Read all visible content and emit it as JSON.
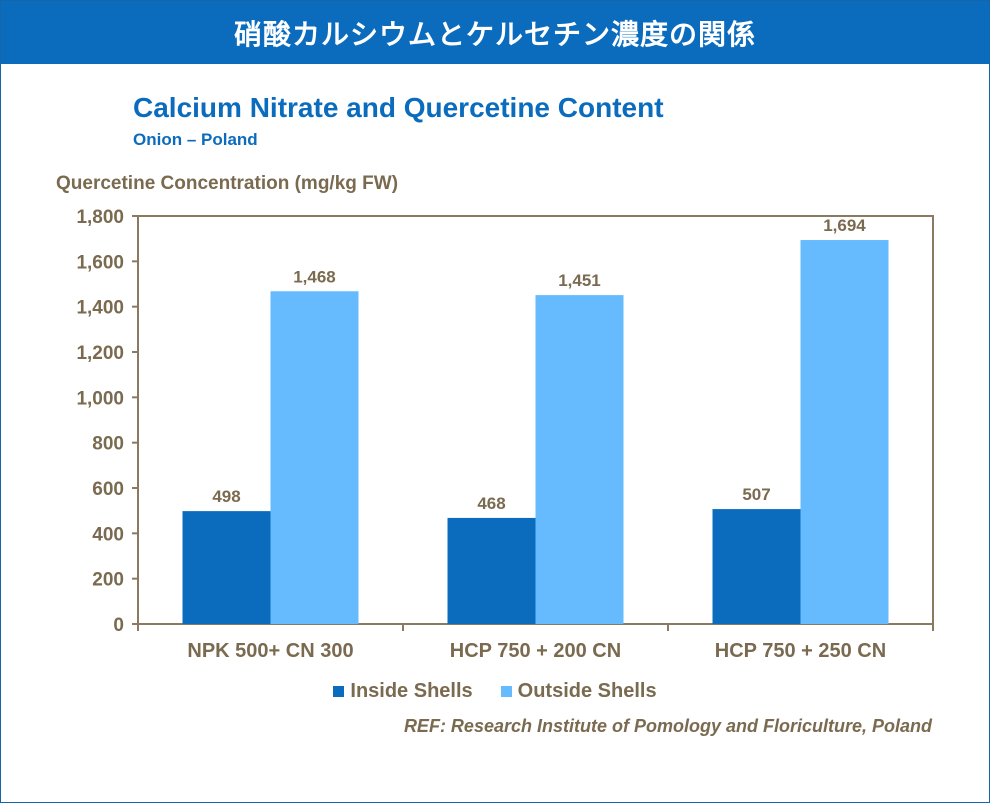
{
  "banner": {
    "title": "硝酸カルシウムとケルセチン濃度の関係"
  },
  "colors": {
    "inside": "#0b6cbe",
    "outside": "#66bbff",
    "axis": "#8a7a62",
    "text": "#7a6a4f"
  },
  "chart_data": {
    "type": "bar",
    "title": "Calcium Nitrate and Quercetine Content",
    "subtitle": "Onion – Poland",
    "ylabel": "Quercetine Concentration (mg/kg FW)",
    "xlabel": "",
    "categories": [
      "NPK 500+ CN 300",
      "HCP 750 + 200 CN",
      "HCP 750 + 250 CN"
    ],
    "series": [
      {
        "name": "Inside Shells",
        "values": [
          498,
          468,
          507
        ],
        "labels": [
          "498",
          "468",
          "507"
        ]
      },
      {
        "name": "Outside Shells",
        "values": [
          1468,
          1451,
          1694
        ],
        "labels": [
          "1,468",
          "1,451",
          "1,694"
        ]
      }
    ],
    "ylim": [
      0,
      1800
    ],
    "yticks": [
      0,
      200,
      400,
      600,
      800,
      1000,
      1200,
      1400,
      1600,
      1800
    ],
    "ytick_labels": [
      "0",
      "200",
      "400",
      "600",
      "800",
      "1,000",
      "1,200",
      "1,400",
      "1,600",
      "1,800"
    ],
    "grid": false,
    "legend_position": "bottom"
  },
  "reference": "REF: Research Institute of Pomology and Floriculture, Poland"
}
